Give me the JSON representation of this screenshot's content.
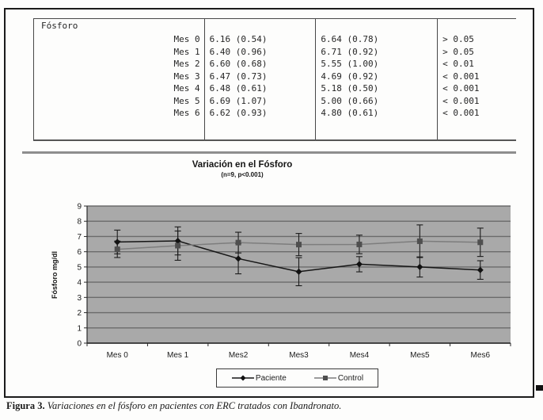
{
  "table": {
    "header": "Fósforo",
    "rows": [
      {
        "label": "Mes 0",
        "col1": "6.16 (0.54)",
        "col2": "6.64 (0.78)",
        "p": "> 0.05"
      },
      {
        "label": "Mes 1",
        "col1": "6.40 (0.96)",
        "col2": "6.71 (0.92)",
        "p": "> 0.05"
      },
      {
        "label": "Mes 2",
        "col1": "6.60 (0.68)",
        "col2": "5.55 (1.00)",
        "p": "< 0.01"
      },
      {
        "label": "Mes 3",
        "col1": "6.47 (0.73)",
        "col2": "4.69 (0.92)",
        "p": "< 0.001"
      },
      {
        "label": "Mes 4",
        "col1": "6.48 (0.61)",
        "col2": "5.18 (0.50)",
        "p": "< 0.001"
      },
      {
        "label": "Mes 5",
        "col1": "6.69 (1.07)",
        "col2": "5.00 (0.66)",
        "p": "< 0.001"
      },
      {
        "label": "Mes 6",
        "col1": "6.62 (0.93)",
        "col2": "4.80 (0.61)",
        "p": "< 0.001"
      }
    ]
  },
  "chart_data": {
    "type": "line",
    "title": "Variación en el Fósforo",
    "subtitle": "(n=9, p<0.001)",
    "ylabel": "Fósforo mg/dl",
    "xlabel": "",
    "ylim": [
      0,
      9
    ],
    "ytick_step": 1,
    "yticks": [
      0,
      1,
      2,
      3,
      4,
      5,
      6,
      7,
      8,
      9
    ],
    "grid": true,
    "legend_position": "bottom",
    "categories": [
      "Mes 0",
      "Mes 1",
      "Mes2",
      "Mes3",
      "Mes4",
      "Mes5",
      "Mes6"
    ],
    "series": [
      {
        "name": "Paciente",
        "marker": "diamond",
        "color": "#161616",
        "marker_color": "#111111",
        "values": [
          6.64,
          6.71,
          5.55,
          4.69,
          5.18,
          5.0,
          4.8
        ],
        "sd": [
          0.78,
          0.92,
          1.0,
          0.92,
          0.5,
          0.66,
          0.61
        ]
      },
      {
        "name": "Control",
        "marker": "square",
        "color": "#7d7d7d",
        "marker_color": "#4f4f4f",
        "values": [
          6.16,
          6.4,
          6.6,
          6.47,
          6.48,
          6.69,
          6.62
        ],
        "sd": [
          0.54,
          0.96,
          0.68,
          0.73,
          0.61,
          1.07,
          0.93
        ]
      }
    ],
    "plot_bg": "#a9a9a9",
    "gridline_color": "#6b6b6b",
    "axis_color": "#2b2b2b",
    "errorbar_color": "#1c1c1c"
  },
  "caption": {
    "label": "Figura 3.",
    "text": " Variaciones en el fósforo en pacientes con ERC tratados con Ibandronato."
  }
}
